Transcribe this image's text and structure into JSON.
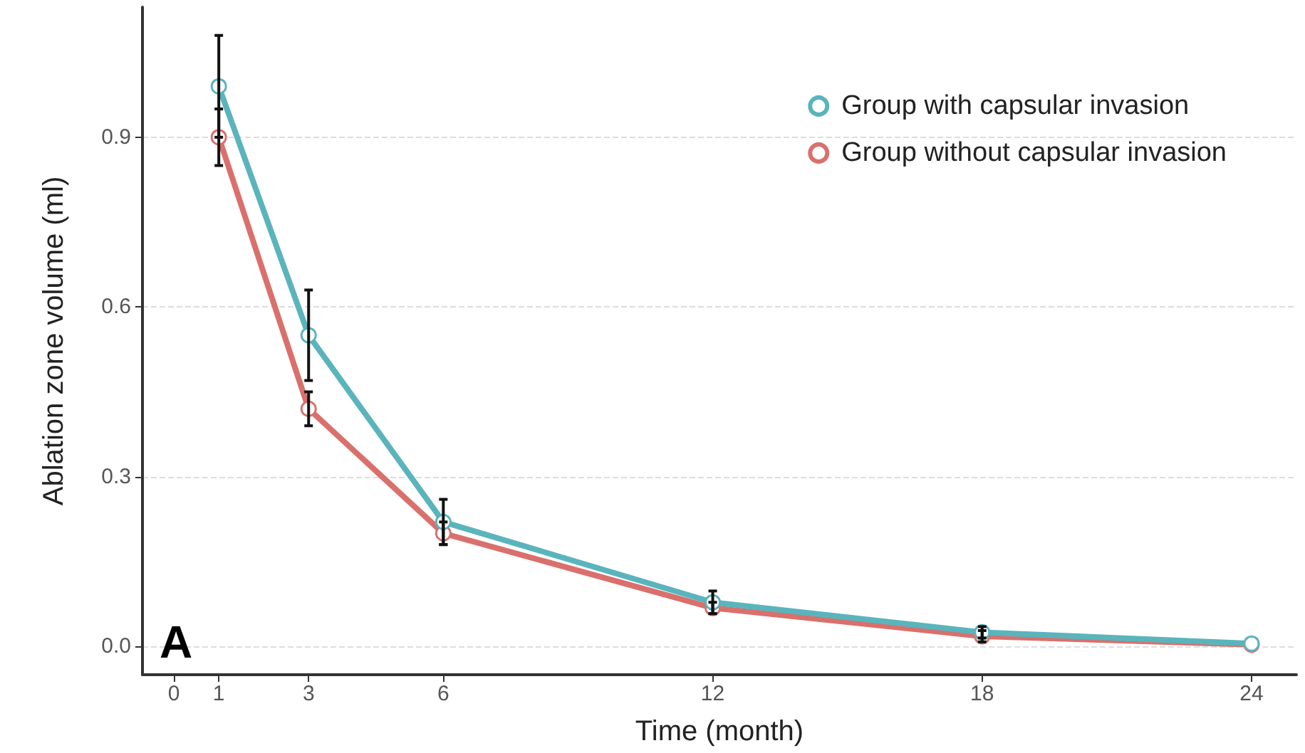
{
  "chart_data": {
    "type": "line",
    "xlabel": "Time (month)",
    "ylabel": "Ablation zone volume (ml)",
    "x": [
      1,
      3,
      6,
      12,
      18,
      24
    ],
    "series": [
      {
        "name": "Group with capsular invasion",
        "color": "#5ab4bc",
        "values": [
          0.99,
          0.55,
          0.22,
          0.078,
          0.025,
          0.005
        ],
        "errors": [
          0.09,
          0.08,
          0.04,
          0.02,
          0.01,
          null
        ]
      },
      {
        "name": "Group without capsular invasion",
        "color": "#d9706c",
        "values": [
          0.9,
          0.42,
          0.2,
          0.068,
          0.018,
          0.003
        ],
        "errors": [
          0.05,
          0.03,
          0.02,
          0.01,
          0.01,
          null
        ]
      }
    ],
    "xlim": [
      -0.7,
      25
    ],
    "xticks": [
      0,
      1,
      3,
      6,
      12,
      18,
      24
    ],
    "ylim": [
      -0.05,
      1.13
    ],
    "yticks": [
      {
        "value": 0,
        "label": "0.0"
      },
      {
        "value": 0.3,
        "label": "0.3"
      },
      {
        "value": 0.6,
        "label": "0.6"
      },
      {
        "value": 0.9,
        "label": "0.9"
      }
    ],
    "grid": "y",
    "legend": "top right",
    "marker": "circle",
    "line_style": "solid",
    "annotations": [
      "A"
    ]
  }
}
